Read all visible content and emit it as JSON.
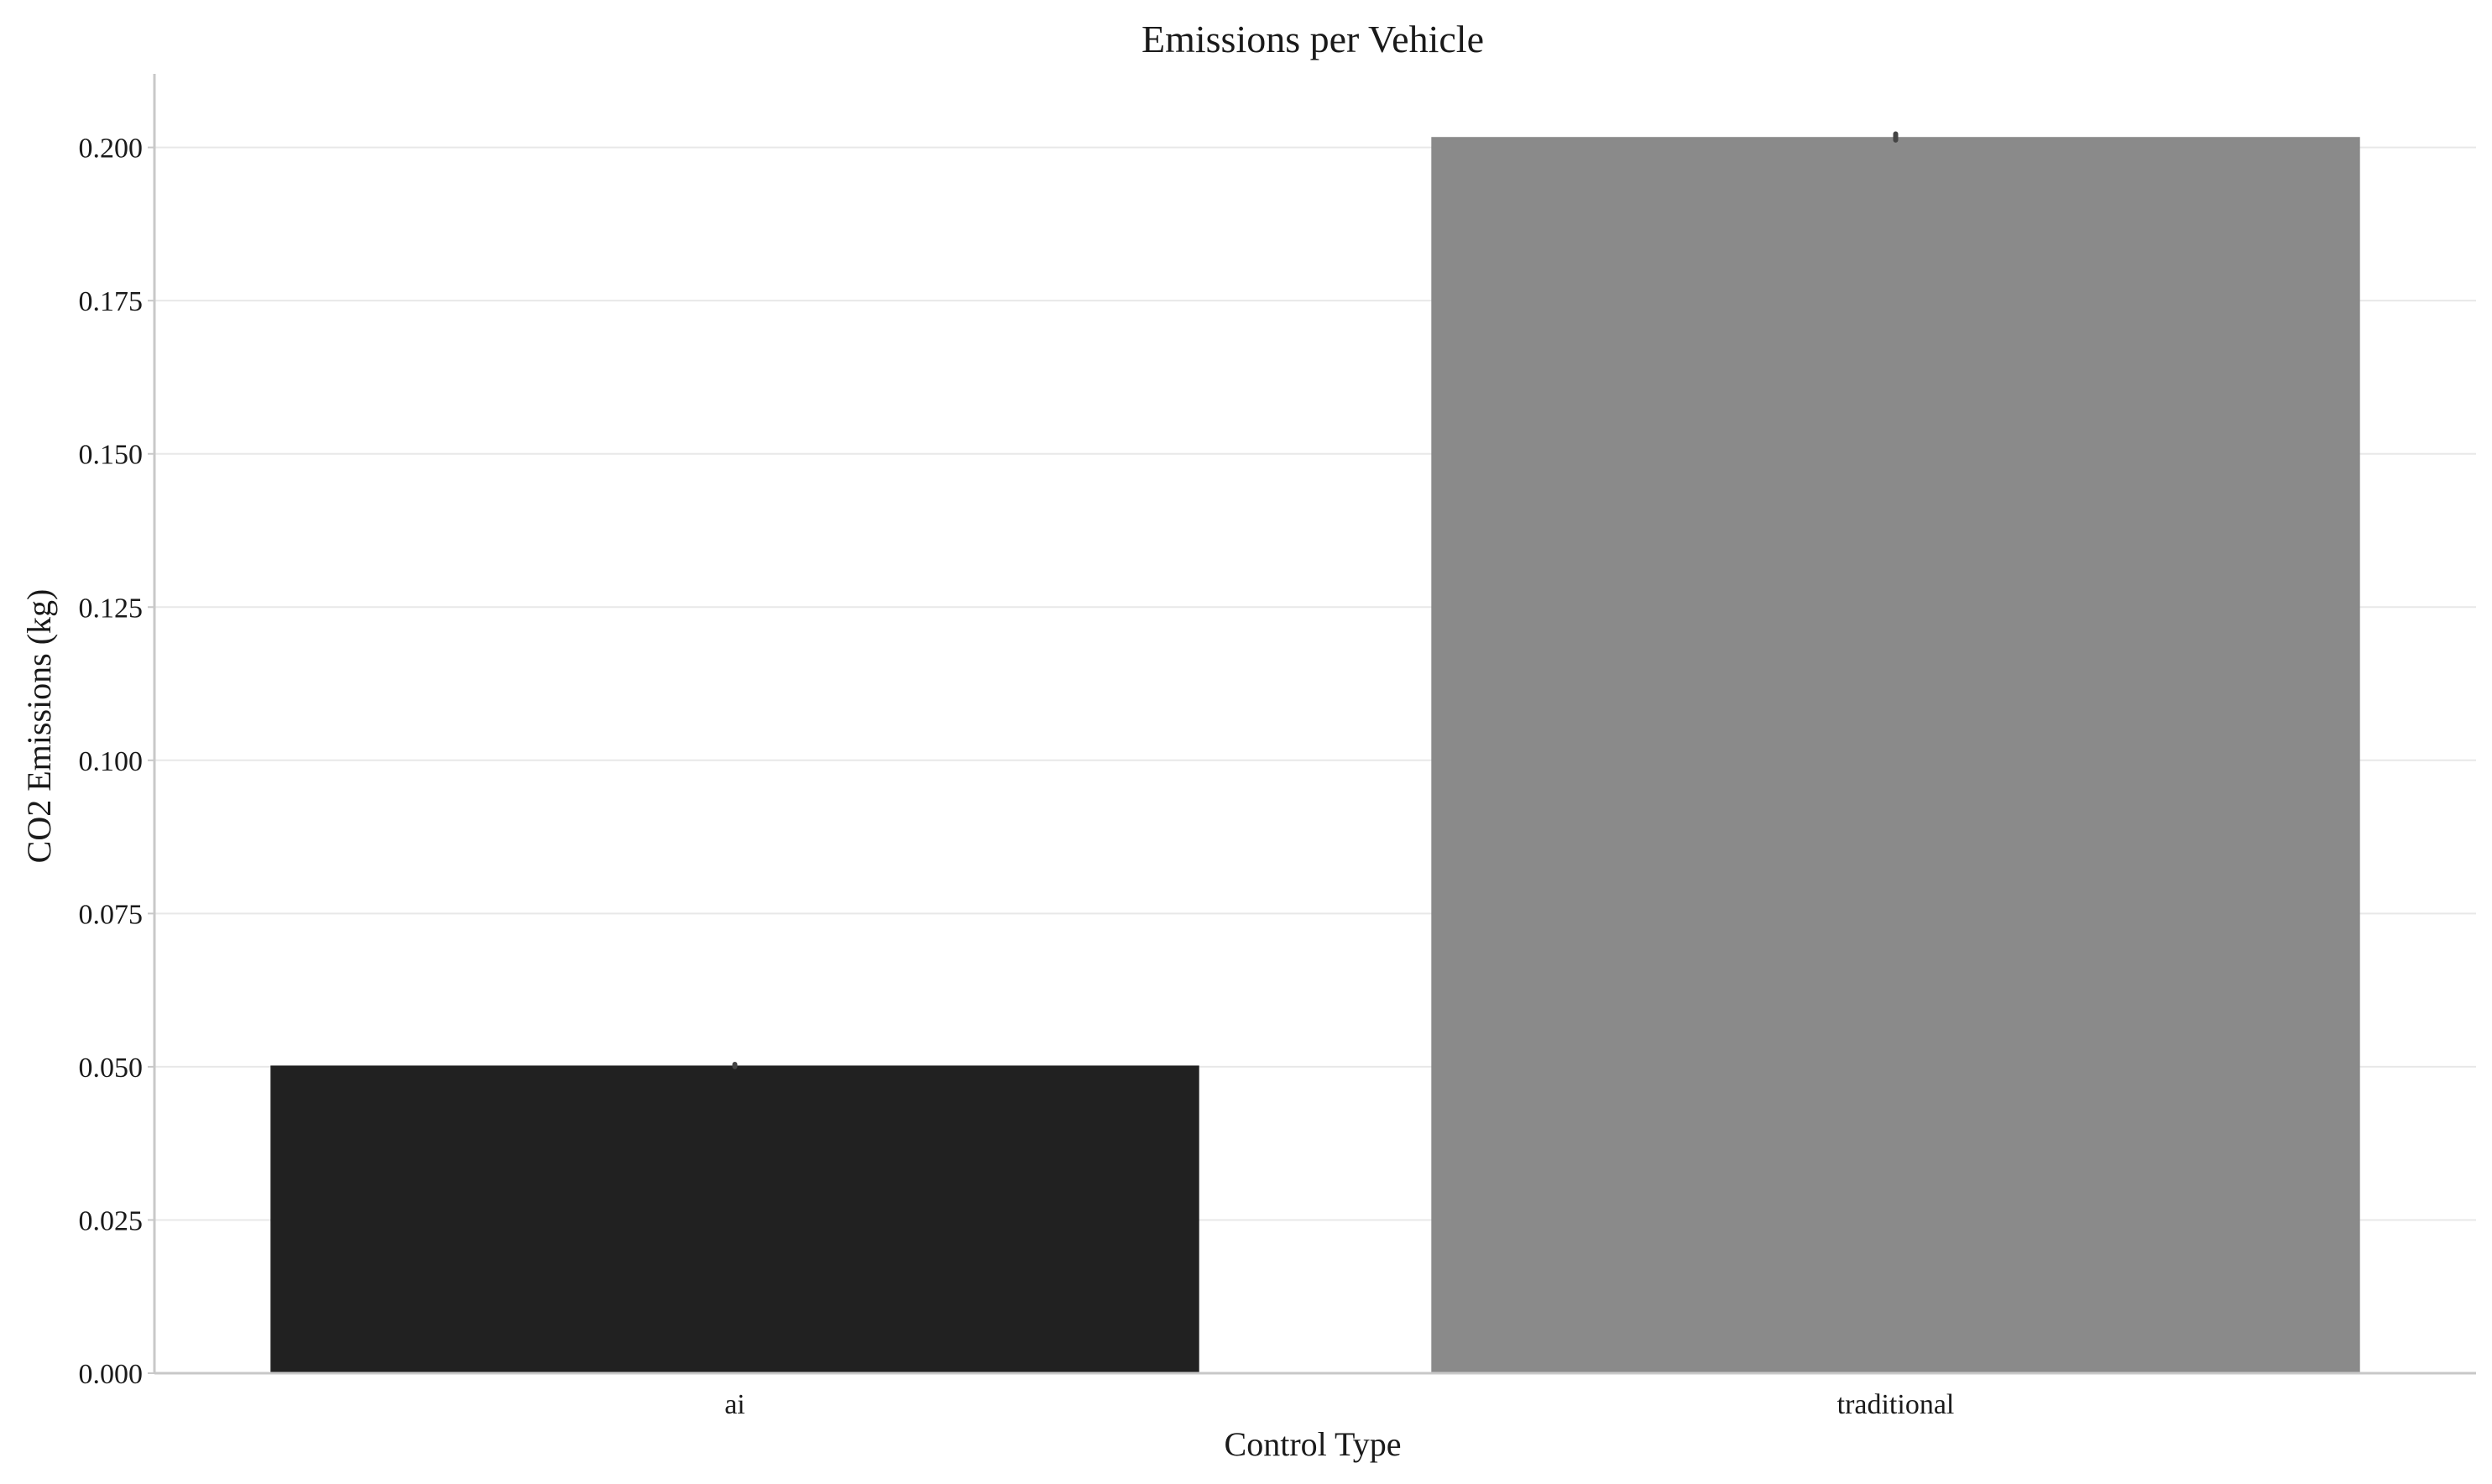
{
  "chart_data": {
    "type": "bar",
    "title": "Emissions per Vehicle",
    "xlabel": "Control Type",
    "ylabel": "CO2 Emissions (kg)",
    "categories": [
      "ai",
      "traditional"
    ],
    "values": [
      0.0502,
      0.2017
    ],
    "error_bars": [
      {
        "low": 0.05,
        "high": 0.0504
      },
      {
        "low": 0.2012,
        "high": 0.2022
      }
    ],
    "colors": [
      "#212121",
      "#8a8a8a"
    ],
    "ylim": [
      0,
      0.212
    ],
    "yticks": [
      "0.000",
      "0.025",
      "0.050",
      "0.075",
      "0.100",
      "0.125",
      "0.150",
      "0.175",
      "0.200"
    ],
    "grid": "horizontal",
    "legend": "none"
  }
}
